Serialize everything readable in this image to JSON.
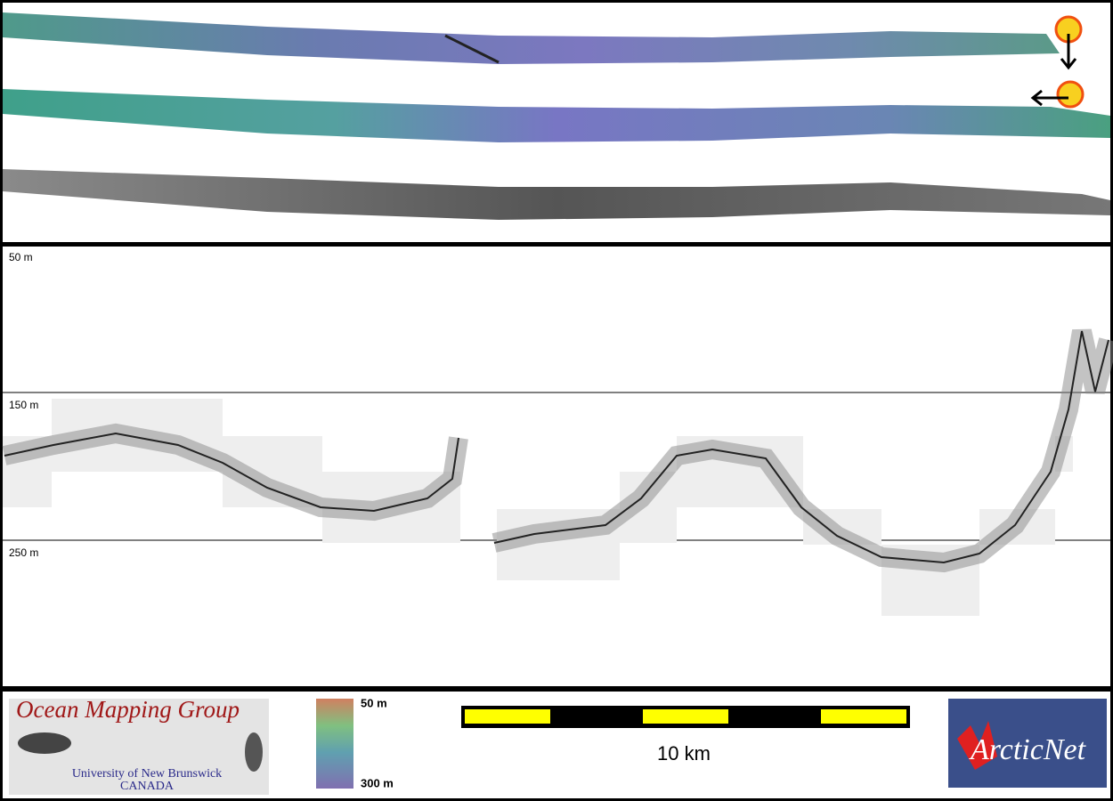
{
  "profile": {
    "depth_labels": [
      "50 m",
      "150 m",
      "250 m"
    ]
  },
  "footer": {
    "logo_left": {
      "title": "Ocean Mapping Group",
      "line1": "University of New Brunswick",
      "line2": "CANADA"
    },
    "colorbar": {
      "top_label": "50 m",
      "bottom_label": "300 m"
    },
    "scale_bar": {
      "label": "10 km"
    },
    "logo_right": {
      "title": "ArcticNet"
    }
  }
}
